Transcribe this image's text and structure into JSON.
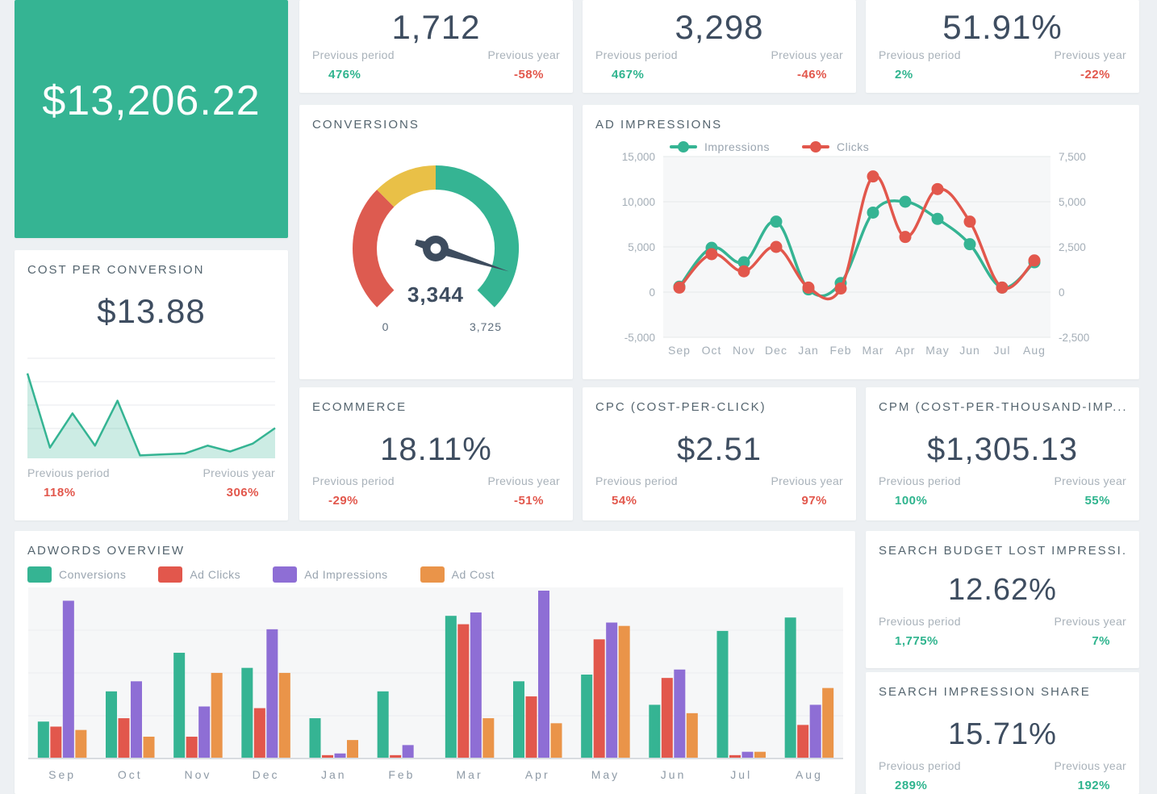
{
  "theme": {
    "background": "#edf0f3",
    "card_bg": "#ffffff",
    "green": "#2fb48e",
    "red": "#e2574c",
    "purple": "#8e6ed5",
    "orange": "#ea9449",
    "yellow": "#e9c047",
    "value_text": "#3e4d60",
    "label_text": "#a9b2ba",
    "title_text": "#55656f",
    "plot_bg": "#f6f7f8",
    "grid_line": "#e5e8ea"
  },
  "revenue_card": {
    "value": "$13,206.22",
    "bg": "#35b493"
  },
  "top_metrics": [
    {
      "value": "1,712",
      "prev_period": {
        "label": "Previous period",
        "value": "476%",
        "color": "#2fb48e"
      },
      "prev_year": {
        "label": "Previous year",
        "value": "-58%",
        "color": "#e2574c"
      }
    },
    {
      "value": "3,298",
      "prev_period": {
        "label": "Previous period",
        "value": "467%",
        "color": "#2fb48e"
      },
      "prev_year": {
        "label": "Previous year",
        "value": "-46%",
        "color": "#e2574c"
      }
    },
    {
      "value": "51.91%",
      "prev_period": {
        "label": "Previous period",
        "value": "2%",
        "color": "#2fb48e"
      },
      "prev_year": {
        "label": "Previous year",
        "value": "-22%",
        "color": "#e2574c"
      }
    }
  ],
  "cost_per_conversion": {
    "title": "COST PER CONVERSION",
    "value": "$13.88",
    "prev_period": {
      "label": "Previous period",
      "value": "118%",
      "color": "#e2574c"
    },
    "prev_year": {
      "label": "Previous year",
      "value": "306%",
      "color": "#e2574c"
    }
  },
  "ecommerce": {
    "title": "ECOMMERCE",
    "value": "18.11%",
    "prev_period": {
      "label": "Previous period",
      "value": "-29%",
      "color": "#e2574c"
    },
    "prev_year": {
      "label": "Previous year",
      "value": "-51%",
      "color": "#e2574c"
    }
  },
  "cpc": {
    "title": "CPC (COST-PER-CLICK)",
    "value": "$2.51",
    "prev_period": {
      "label": "Previous period",
      "value": "54%",
      "color": "#e2574c"
    },
    "prev_year": {
      "label": "Previous year",
      "value": "97%",
      "color": "#e2574c"
    }
  },
  "cpm": {
    "title": "CPM (COST-PER-THOUSAND-IMP...",
    "value": "$1,305.13",
    "prev_period": {
      "label": "Previous period",
      "value": "100%",
      "color": "#2fb48e"
    },
    "prev_year": {
      "label": "Previous year",
      "value": "55%",
      "color": "#2fb48e"
    }
  },
  "search_budget_lost": {
    "title": "SEARCH BUDGET LOST IMPRESSI...",
    "value": "12.62%",
    "prev_period": {
      "label": "Previous period",
      "value": "1,775%",
      "color": "#2fb48e"
    },
    "prev_year": {
      "label": "Previous year",
      "value": "7%",
      "color": "#2fb48e"
    }
  },
  "search_impression_share": {
    "title": "SEARCH IMPRESSION SHARE",
    "value": "15.71%",
    "prev_period": {
      "label": "Previous period",
      "value": "289%",
      "color": "#2fb48e"
    },
    "prev_year": {
      "label": "Previous year",
      "value": "192%",
      "color": "#2fb48e"
    }
  },
  "chart_data": [
    {
      "id": "conversions_gauge",
      "type": "gauge",
      "title": "CONVERSIONS",
      "value": 3344,
      "min": 0,
      "max": 3725,
      "value_label": "3,344",
      "min_label": "0",
      "max_label": "3,725",
      "segments": [
        {
          "color": "#dd5b50",
          "fraction": 0.3333
        },
        {
          "color": "#e9c047",
          "fraction": 0.1667
        },
        {
          "color": "#35b493",
          "fraction": 0.5
        }
      ],
      "needle_color": "#3d4c5e"
    },
    {
      "id": "ad_impressions",
      "type": "line",
      "title": "AD IMPRESSIONS",
      "categories": [
        "Sep",
        "Oct",
        "Nov",
        "Dec",
        "Jan",
        "Feb",
        "Mar",
        "Apr",
        "May",
        "Jun",
        "Jul",
        "Aug"
      ],
      "left_axis": {
        "min": -5000,
        "max": 15000,
        "ticks": [
          "15,000",
          "10,000",
          "5,000",
          "0",
          "-5,000"
        ]
      },
      "right_axis": {
        "min": -2500,
        "max": 7500,
        "ticks": [
          "7,500",
          "5,000",
          "2,500",
          "0",
          "-2,500"
        ]
      },
      "legend_position": "top",
      "series": [
        {
          "name": "Impressions",
          "color": "#35b493",
          "axis": "left",
          "values": [
            600,
            4900,
            3300,
            7800,
            300,
            1000,
            8800,
            10000,
            8100,
            5300,
            500,
            3300
          ]
        },
        {
          "name": "Clicks",
          "color": "#e2574c",
          "axis": "right",
          "values": [
            250,
            2100,
            1150,
            2500,
            250,
            200,
            6400,
            3050,
            5700,
            3900,
            250,
            1750
          ]
        }
      ]
    },
    {
      "id": "cost_per_conversion_trend",
      "type": "area",
      "color": "#35b493",
      "ymax": 1.05,
      "values": [
        0.87,
        0.11,
        0.46,
        0.13,
        0.59,
        0.03,
        0.04,
        0.05,
        0.13,
        0.07,
        0.15,
        0.31
      ]
    },
    {
      "id": "adwords_overview",
      "type": "bar",
      "title": "ADWORDS OVERVIEW",
      "categories": [
        "Sep",
        "Oct",
        "Nov",
        "Dec",
        "Jan",
        "Feb",
        "Mar",
        "Apr",
        "May",
        "Jun",
        "Jul",
        "Aug"
      ],
      "value_scale": "percent_of_max",
      "series": [
        {
          "name": "Conversions",
          "color": "#35b493",
          "values": [
            22,
            40,
            63,
            54,
            24,
            40,
            85,
            46,
            50,
            32,
            76,
            84
          ]
        },
        {
          "name": "Ad Clicks",
          "color": "#e2574c",
          "values": [
            19,
            24,
            13,
            30,
            2,
            2,
            80,
            37,
            71,
            48,
            2,
            20
          ]
        },
        {
          "name": "Ad Impressions",
          "color": "#8e6ed5",
          "values": [
            94,
            46,
            31,
            77,
            3,
            8,
            87,
            100,
            81,
            53,
            4,
            32
          ]
        },
        {
          "name": "Ad Cost",
          "color": "#ea9449",
          "values": [
            17,
            13,
            51,
            51,
            11,
            0,
            24,
            21,
            79,
            27,
            4,
            42
          ]
        }
      ]
    }
  ]
}
